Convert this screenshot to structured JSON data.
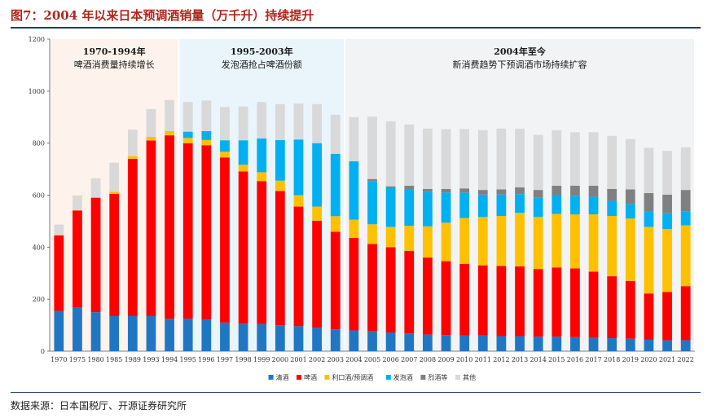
{
  "header": {
    "title": "图7：2004 年以来日本预调酒销量（万千升）持续提升"
  },
  "footer": {
    "source": "数据来源：日本国税厅、开源证券研究所"
  },
  "colors": {
    "title": "#b0261c",
    "rule": "#1f3b6e",
    "period1_bg": "#fdf3ec",
    "period2_bg": "#eaf4fb",
    "period3_bg": "#f1f3f5"
  },
  "chart_data": {
    "type": "bar",
    "stacked": true,
    "ylim": [
      0,
      1200
    ],
    "yticks": [
      0,
      200,
      400,
      600,
      800,
      1000,
      1200
    ],
    "categories": [
      "1970",
      "1975",
      "1980",
      "1985",
      "1989",
      "1993",
      "1994",
      "1995",
      "1996",
      "1997",
      "1998",
      "1999",
      "2000",
      "2001",
      "2002",
      "2003",
      "2004",
      "2005",
      "2006",
      "2007",
      "2008",
      "2009",
      "2010",
      "2011",
      "2012",
      "2013",
      "2014",
      "2015",
      "2016",
      "2017",
      "2018",
      "2019",
      "2020",
      "2021",
      "2022"
    ],
    "series": [
      {
        "name": "清酒",
        "color": "#1f77c4",
        "values": [
          155,
          168,
          150,
          135,
          135,
          135,
          125,
          125,
          122,
          110,
          106,
          104,
          100,
          96,
          90,
          84,
          80,
          76,
          72,
          68,
          64,
          62,
          60,
          60,
          58,
          58,
          56,
          56,
          54,
          52,
          50,
          48,
          44,
          42,
          42
        ]
      },
      {
        "name": "啤酒",
        "color": "#ff0000",
        "values": [
          290,
          373,
          440,
          470,
          605,
          675,
          705,
          675,
          670,
          635,
          585,
          550,
          516,
          460,
          412,
          375,
          356,
          336,
          328,
          318,
          296,
          284,
          276,
          270,
          270,
          268,
          260,
          266,
          264,
          254,
          238,
          222,
          178,
          186,
          208
        ]
      },
      {
        "name": "利口酒/预调酒",
        "color": "#ffc000",
        "values": [
          2,
          2,
          2,
          8,
          10,
          14,
          16,
          20,
          20,
          22,
          26,
          34,
          40,
          44,
          54,
          60,
          70,
          76,
          78,
          96,
          120,
          148,
          176,
          186,
          192,
          206,
          200,
          206,
          208,
          220,
          232,
          240,
          256,
          242,
          234
        ]
      },
      {
        "name": "发泡酒",
        "color": "#00b0f0",
        "values": [
          0,
          0,
          0,
          0,
          0,
          0,
          0,
          24,
          34,
          44,
          94,
          130,
          156,
          214,
          244,
          240,
          224,
          166,
          150,
          140,
          132,
          116,
          98,
          86,
          82,
          72,
          74,
          72,
          72,
          68,
          58,
          56,
          58,
          60,
          54
        ]
      },
      {
        "name": "烈酒等",
        "color": "#808080",
        "values": [
          0,
          0,
          0,
          0,
          0,
          0,
          0,
          0,
          0,
          0,
          0,
          0,
          0,
          0,
          0,
          0,
          0,
          8,
          6,
          14,
          12,
          14,
          16,
          18,
          20,
          26,
          30,
          36,
          38,
          42,
          46,
          56,
          72,
          72,
          82
        ]
      },
      {
        "name": "其他",
        "color": "#d9d9d9",
        "values": [
          40,
          56,
          73,
          112,
          102,
          107,
          120,
          114,
          118,
          128,
          130,
          140,
          138,
          138,
          150,
          150,
          170,
          240,
          250,
          236,
          232,
          230,
          228,
          230,
          234,
          226,
          212,
          214,
          206,
          206,
          204,
          194,
          174,
          168,
          164
        ]
      }
    ],
    "periods": [
      {
        "label": "1970-1994年",
        "desc": "啤酒消费量持续增长",
        "start": "1970",
        "end": "1994"
      },
      {
        "label": "1995-2003年",
        "desc": "发泡酒抢占啤酒份额",
        "start": "1995",
        "end": "2003"
      },
      {
        "label": "2004年至今",
        "desc": "新消费趋势下预调酒市场持续扩容",
        "start": "2004",
        "end": "2022"
      }
    ]
  }
}
